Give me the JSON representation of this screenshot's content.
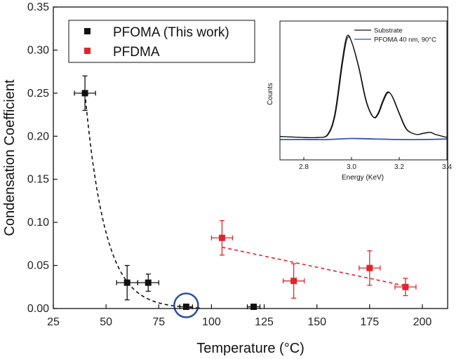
{
  "chart_data": [
    {
      "type": "scatter",
      "xlabel": "Temperature (°C)",
      "ylabel": "Condensation Coefficient",
      "xlim": [
        25,
        212
      ],
      "ylim": [
        0,
        0.35
      ],
      "xticks": [
        "25",
        "50",
        "75",
        "100",
        "125",
        "150",
        "175",
        "200"
      ],
      "yticks": [
        "0.00",
        "0.05",
        "0.10",
        "0.15",
        "0.20",
        "0.25",
        "0.30",
        "0.35"
      ],
      "legend_position": "top-left",
      "series": [
        {
          "name": "PFOMA (This work)",
          "color": "#111111",
          "points": [
            {
              "x": 40,
              "y": 0.25,
              "xerr": 5,
              "yerr": 0.02
            },
            {
              "x": 60,
              "y": 0.03,
              "xerr": 5,
              "yerr": 0.02
            },
            {
              "x": 70,
              "y": 0.03,
              "xerr": 5,
              "yerr": 0.01
            },
            {
              "x": 88,
              "y": 0.002,
              "xerr": 3,
              "yerr": 0.003
            },
            {
              "x": 120,
              "y": 0.002,
              "xerr": 3,
              "yerr": 0.002
            }
          ],
          "trend": "dashed exponential decay",
          "highlighted_point_x": 88,
          "highlight_color": "#2b4fa0"
        },
        {
          "name": "PFDMA",
          "color": "#e0262b",
          "points": [
            {
              "x": 105,
              "y": 0.082,
              "xerr": 5,
              "yerr": 0.02
            },
            {
              "x": 139,
              "y": 0.032,
              "xerr": 5,
              "yerr": 0.02
            },
            {
              "x": 175,
              "y": 0.047,
              "xerr": 5,
              "yerr": 0.02
            },
            {
              "x": 192,
              "y": 0.025,
              "xerr": 5,
              "yerr": 0.01
            }
          ],
          "trend": "dashed linear"
        }
      ]
    },
    {
      "type": "line",
      "xlabel": "Energy (KeV)",
      "ylabel": "Counts",
      "xlim": [
        2.7,
        3.4
      ],
      "ylim": [
        0,
        1.05
      ],
      "xticks": [
        "2.8",
        "3.0",
        "3.2",
        "3.4"
      ],
      "legend_position": "top-right",
      "series": [
        {
          "name": "Substrate",
          "color": "#111111",
          "x": [
            2.7,
            2.8,
            2.86,
            2.9,
            2.93,
            2.96,
            2.98,
            3.0,
            3.03,
            3.06,
            3.09,
            3.11,
            3.13,
            3.15,
            3.17,
            3.2,
            3.23,
            3.27,
            3.3,
            3.33,
            3.35,
            3.4
          ],
          "values": [
            0.03,
            0.02,
            0.02,
            0.05,
            0.25,
            0.75,
            1.0,
            0.95,
            0.7,
            0.38,
            0.22,
            0.25,
            0.37,
            0.46,
            0.42,
            0.25,
            0.1,
            0.05,
            0.06,
            0.07,
            0.05,
            0.02
          ]
        },
        {
          "name": "PFOMA 40 nm, 90°C",
          "color": "#3055a8",
          "x": [
            2.7,
            2.8,
            2.9,
            3.0,
            3.1,
            3.2,
            3.3,
            3.4
          ],
          "values": [
            0.0,
            0.0,
            0.0,
            0.01,
            0.005,
            0.0,
            0.0,
            0.005
          ]
        }
      ]
    }
  ]
}
